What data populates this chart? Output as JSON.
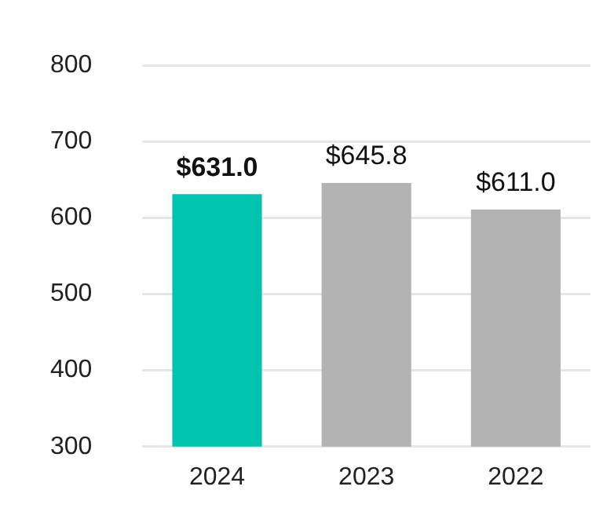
{
  "chart_data": {
    "type": "bar",
    "categories": [
      "2024",
      "2023",
      "2022"
    ],
    "values": [
      631.0,
      645.8,
      611.0
    ],
    "colors": [
      "#00c4ad",
      "#b3b3b3",
      "#b3b3b3"
    ],
    "value_labels": [
      "$631.0",
      "$645.8",
      "$611.0"
    ],
    "ylim": [
      300,
      800
    ],
    "yticks": [
      300,
      400,
      500,
      600,
      700,
      800
    ],
    "grid": "y"
  }
}
